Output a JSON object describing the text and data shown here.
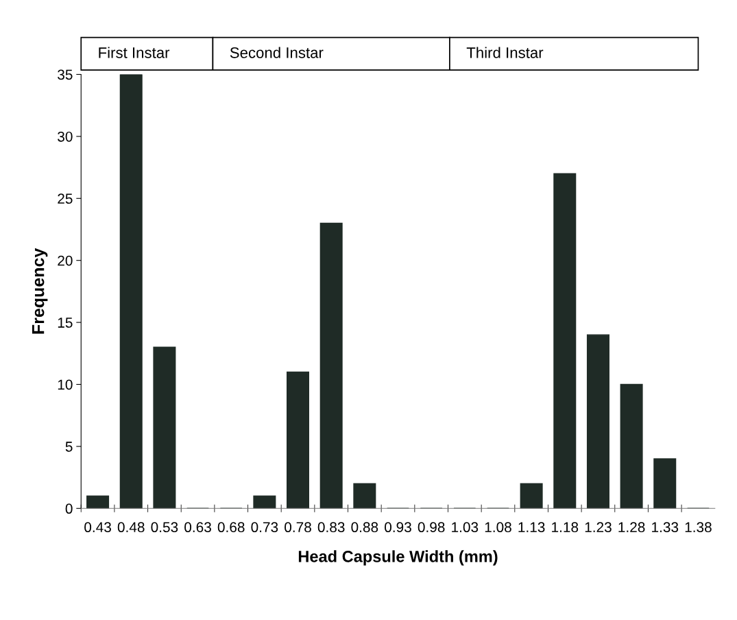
{
  "chart_data": {
    "type": "bar",
    "xlabel": "Head Capsule Width (mm)",
    "ylabel": "Frequency",
    "categories": [
      "0.43",
      "0.48",
      "0.53",
      "0.63",
      "0.68",
      "0.73",
      "0.78",
      "0.83",
      "0.88",
      "0.93",
      "0.98",
      "1.03",
      "1.08",
      "1.13",
      "1.18",
      "1.23",
      "1.28",
      "1.33",
      "1.38"
    ],
    "values": [
      1,
      35,
      13,
      0,
      0,
      1,
      11,
      23,
      2,
      0,
      0,
      0,
      0,
      2,
      27,
      14,
      10,
      4,
      0
    ],
    "color": "#1f2b26",
    "ylim": [
      0,
      35
    ],
    "yticks": [
      0,
      5,
      10,
      15,
      20,
      25,
      30,
      35
    ],
    "grid": false,
    "legend": false,
    "annotations": [
      "First Instar",
      "Second Instar",
      "Third Instar"
    ]
  }
}
